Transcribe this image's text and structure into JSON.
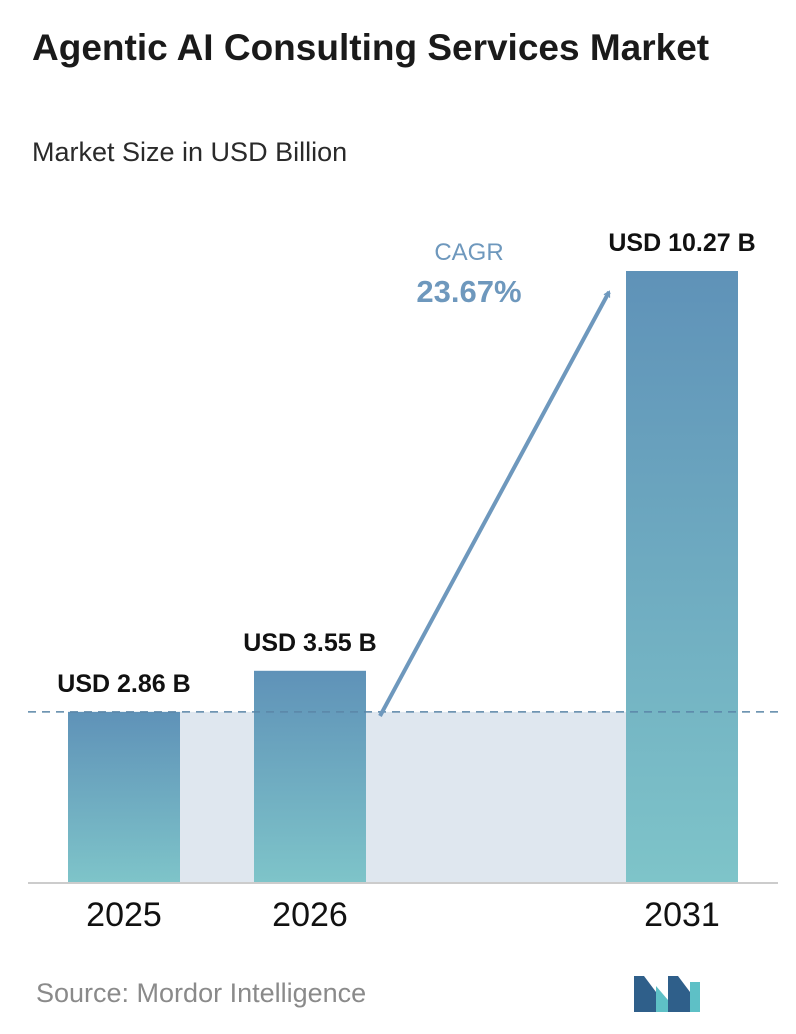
{
  "chart_data": {
    "type": "bar",
    "title": "Agentic AI Consulting Services Market",
    "subtitle": "Market Size in USD Billion",
    "categories": [
      "2025",
      "2026",
      "2031"
    ],
    "values": [
      2.86,
      3.55,
      10.27
    ],
    "value_labels": [
      "USD 2.86 B",
      "USD 3.55 B",
      "USD 10.27 B"
    ],
    "annotation": {
      "label": "CAGR",
      "value": "23.67%"
    },
    "ylim": [
      0,
      10.27
    ],
    "grid": false,
    "legend": "none"
  },
  "source": "Source: Mordor Intelligence",
  "logo": {
    "icon": "mordor-intelligence-logo-icon"
  },
  "colors": {
    "bar_top": "#5f92b8",
    "bar_bottom": "#7ec4c9",
    "band": "#dfe7ef",
    "dashed_line": "#5b86a8",
    "arrow": "#6e98bd",
    "axis": "#cccccc",
    "logo_dark": "#2f5f8a",
    "logo_light": "#5ec0c6"
  }
}
